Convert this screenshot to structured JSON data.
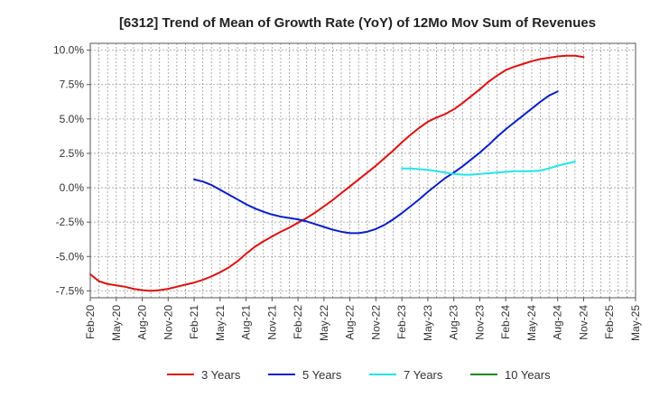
{
  "chart_data": {
    "type": "line",
    "title": "[6312]  Trend of Mean of Growth Rate (YoY) of 12Mo Mov Sum of Revenues",
    "xlabel": "",
    "ylabel": "",
    "ylim": [
      -8.0,
      10.5
    ],
    "yticks": [
      10.0,
      7.5,
      5.0,
      2.5,
      0.0,
      -2.5,
      -5.0,
      -7.5
    ],
    "ytick_labels": [
      "10.0%",
      "7.5%",
      "5.0%",
      "2.5%",
      "0.0%",
      "-2.5%",
      "-5.0%",
      "-7.5%"
    ],
    "x_labels": [
      "Feb-20",
      "May-20",
      "Aug-20",
      "Nov-20",
      "Feb-21",
      "May-21",
      "Aug-21",
      "Nov-21",
      "Feb-22",
      "May-22",
      "Aug-22",
      "Nov-22",
      "Feb-23",
      "May-23",
      "Aug-23",
      "Nov-23",
      "Feb-24",
      "May-24",
      "Aug-24",
      "Nov-24",
      "Feb-25",
      "May-25"
    ],
    "grid": true,
    "legend_position": "bottom",
    "series": [
      {
        "name": "3 Years",
        "color": "#dd1111",
        "start_month": 0,
        "values": [
          -6.3,
          -6.8,
          -7.0,
          -7.1,
          -7.2,
          -7.35,
          -7.45,
          -7.5,
          -7.45,
          -7.35,
          -7.2,
          -7.05,
          -6.9,
          -6.7,
          -6.45,
          -6.15,
          -5.8,
          -5.35,
          -4.8,
          -4.3,
          -3.9,
          -3.55,
          -3.2,
          -2.9,
          -2.55,
          -2.2,
          -1.8,
          -1.35,
          -0.9,
          -0.4,
          0.1,
          0.6,
          1.1,
          1.6,
          2.15,
          2.7,
          3.3,
          3.85,
          4.35,
          4.8,
          5.1,
          5.35,
          5.7,
          6.15,
          6.65,
          7.15,
          7.7,
          8.15,
          8.55,
          8.8,
          9.0,
          9.2,
          9.35,
          9.45,
          9.55,
          9.6,
          9.6,
          9.5
        ]
      },
      {
        "name": "5 Years",
        "color": "#0a1ec8",
        "start_month": 12,
        "values": [
          0.6,
          0.45,
          0.2,
          -0.15,
          -0.5,
          -0.85,
          -1.2,
          -1.5,
          -1.75,
          -1.95,
          -2.1,
          -2.2,
          -2.3,
          -2.45,
          -2.65,
          -2.85,
          -3.05,
          -3.2,
          -3.3,
          -3.3,
          -3.2,
          -3.0,
          -2.7,
          -2.3,
          -1.85,
          -1.35,
          -0.85,
          -0.3,
          0.2,
          0.7,
          1.1,
          1.55,
          2.05,
          2.55,
          3.1,
          3.7,
          4.25,
          4.75,
          5.25,
          5.75,
          6.25,
          6.7,
          7.0
        ]
      },
      {
        "name": "7 Years",
        "color": "#22e6e6",
        "start_month": 36,
        "values": [
          1.4,
          1.4,
          1.35,
          1.3,
          1.2,
          1.1,
          1.0,
          0.95,
          0.95,
          1.0,
          1.05,
          1.1,
          1.15,
          1.2,
          1.2,
          1.2,
          1.25,
          1.4,
          1.6,
          1.75,
          1.9
        ]
      },
      {
        "name": "10 Years",
        "color": "#1a8a1a",
        "start_month": 0,
        "values": []
      }
    ]
  }
}
